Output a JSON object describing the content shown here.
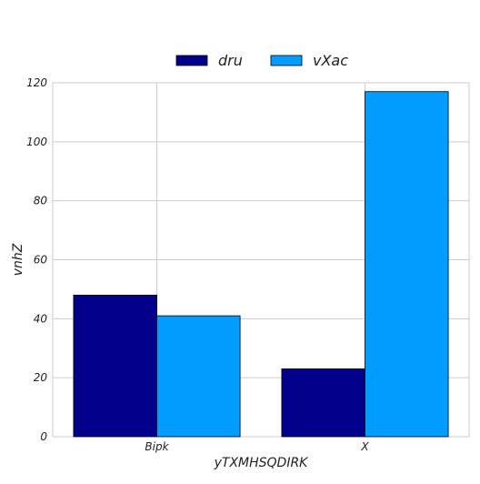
{
  "chart_data": {
    "type": "bar",
    "categories": [
      "Bipk",
      "X"
    ],
    "series": [
      {
        "name": "dru",
        "values": [
          48,
          23
        ],
        "color": "#00008b"
      },
      {
        "name": "vXac",
        "values": [
          41,
          117
        ],
        "color": "#009cff"
      }
    ],
    "title": "",
    "xlabel": "yTXMHSQDIRK",
    "ylabel": "vnhZ",
    "ylim": [
      0,
      120
    ],
    "yticks": [
      0,
      20,
      40,
      60,
      80,
      100,
      120
    ],
    "grid": true,
    "legend_position": "top-center"
  }
}
